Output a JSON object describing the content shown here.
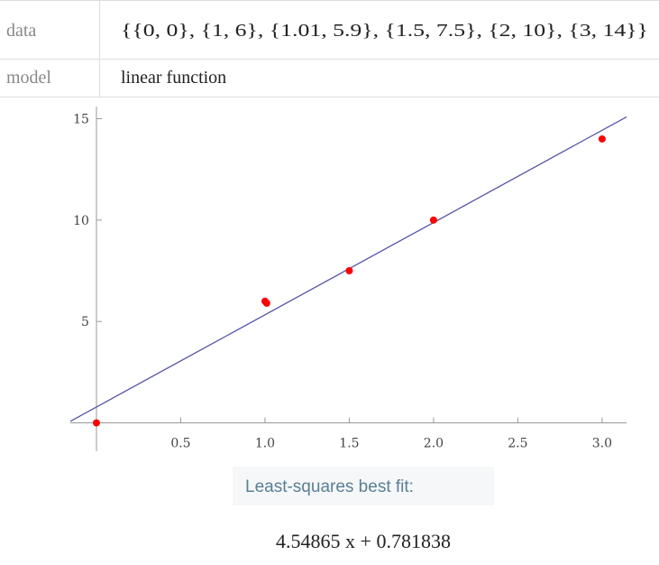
{
  "input_table": {
    "rows": [
      [
        "data",
        "{{0, 0}, {1, 6}, {1.01, 5.9}, {1.5, 7.5}, {2, 10}, {3, 14}}"
      ],
      [
        "model",
        "linear function"
      ]
    ]
  },
  "chart_data": {
    "type": "scatter",
    "x": [
      0,
      1,
      1.01,
      1.5,
      2,
      3
    ],
    "values": [
      0,
      6,
      5.9,
      7.5,
      10,
      14
    ],
    "color": "#ff0000",
    "fit": {
      "slope": 4.54865,
      "intercept": 0.781838,
      "color": "#5555aa",
      "label": "4.54865 x + 0.781838"
    },
    "xlim": [
      -0.155,
      3.145
    ],
    "ylim": [
      -1.4,
      15.6
    ],
    "xticks": [
      0.5,
      {
        "value": 1,
        "label": "1.0"
      },
      1.5,
      {
        "value": 2,
        "label": "2.0"
      },
      2.5,
      {
        "value": 3,
        "label": "3.0"
      }
    ],
    "yticks": [
      5,
      10,
      15
    ]
  },
  "result": {
    "heading": "Least-squares best fit:"
  }
}
